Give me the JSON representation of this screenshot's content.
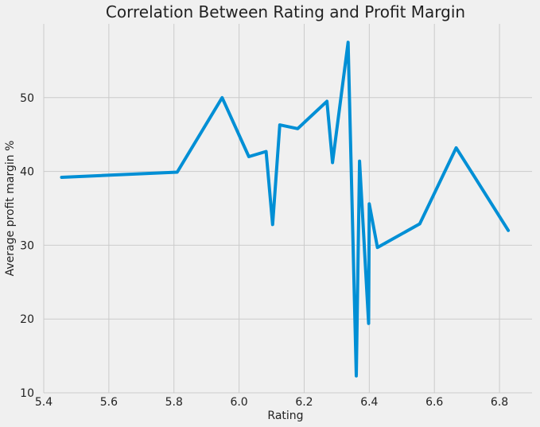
{
  "chart_data": {
    "type": "line",
    "title": "Correlation Between Rating and Profit Margin",
    "xlabel": "Rating",
    "ylabel": "Average profit margin %",
    "xlim": [
      5.4,
      6.9
    ],
    "ylim": [
      10,
      60
    ],
    "xticks": [
      "5.4",
      "5.6",
      "5.8",
      "6.0",
      "6.2",
      "6.4",
      "6.6",
      "6.8"
    ],
    "yticks": [
      "10",
      "20",
      "30",
      "40",
      "50"
    ],
    "grid": true,
    "color": "#008fd5",
    "series": [
      {
        "x": [
          5.455,
          5.81,
          5.948,
          6.03,
          6.083,
          6.103,
          6.125,
          6.18,
          6.27,
          6.287,
          6.335,
          6.36,
          6.37,
          6.398,
          6.4,
          6.425,
          6.555,
          6.667,
          6.72,
          6.827
        ],
        "y": [
          39.2,
          39.9,
          50.0,
          42.0,
          42.7,
          32.8,
          46.3,
          45.8,
          49.5,
          41.2,
          57.5,
          12.3,
          41.4,
          19.4,
          35.6,
          29.7,
          32.9,
          43.2,
          39.5,
          32.0
        ]
      }
    ]
  }
}
